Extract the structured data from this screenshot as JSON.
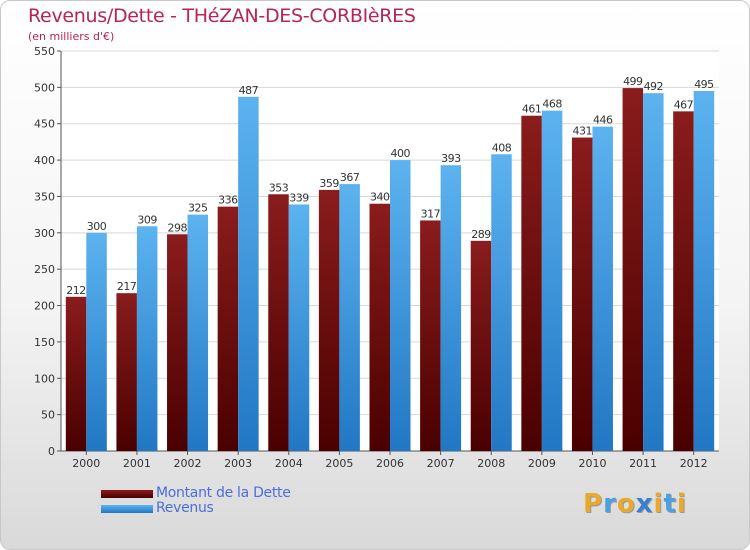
{
  "title": "Revenus/Dette - THéZAN-DES-CORBIèRES",
  "subtitle": "(en milliers d'€)",
  "chart_data": {
    "type": "bar",
    "categories": [
      "2000",
      "2001",
      "2002",
      "2003",
      "2004",
      "2005",
      "2006",
      "2007",
      "2008",
      "2009",
      "2010",
      "2011",
      "2012"
    ],
    "series": [
      {
        "name": "Montant de la Dette",
        "color": "#7a1414",
        "values": [
          212,
          217,
          298,
          336,
          353,
          359,
          340,
          317,
          289,
          461,
          431,
          499,
          467
        ]
      },
      {
        "name": "Revenus",
        "color": "#3a95de",
        "values": [
          300,
          309,
          325,
          487,
          339,
          367,
          400,
          393,
          408,
          468,
          446,
          492,
          495
        ]
      }
    ],
    "ylim": [
      0,
      550
    ],
    "yticks": [
      0,
      50,
      100,
      150,
      200,
      250,
      300,
      350,
      400,
      450,
      500,
      550
    ],
    "grid": true,
    "legend": "bottom-left"
  },
  "logo": {
    "letters": [
      "P",
      "r",
      "o",
      "x",
      "i",
      "t",
      "i"
    ],
    "colors": [
      "#e8a92e",
      "#4aa0e0",
      "#e8a92e",
      "#3a7fd0",
      "#e8a92e",
      "#4aa0e0",
      "#e8a92e"
    ]
  }
}
